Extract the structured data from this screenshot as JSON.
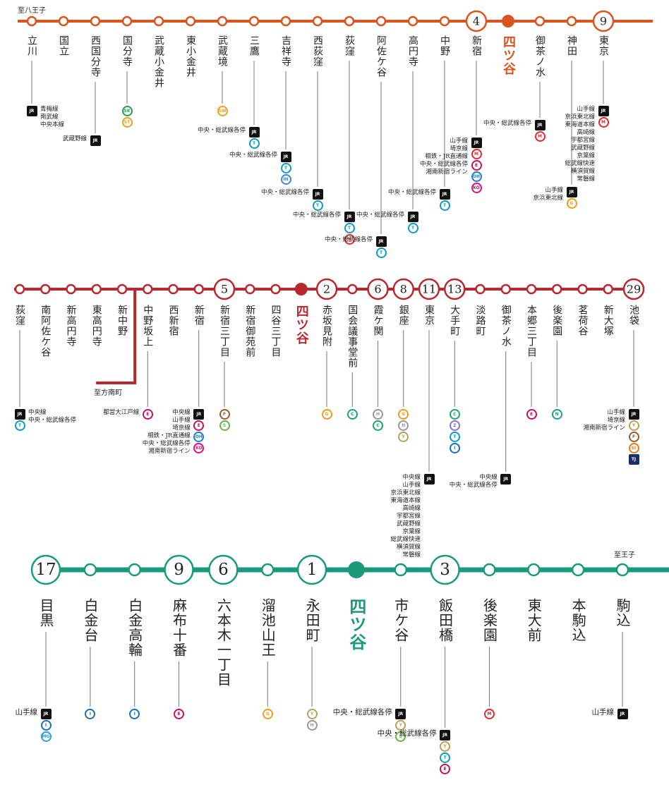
{
  "badge_colors": {
    "JR": "#111111",
    "T": "#0a9bc4",
    "M": "#e5262f",
    "E": "#c4105a",
    "OH": "#1a7fcc",
    "KO": "#d4127a",
    "G": "#f39a1a",
    "C": "#1aa66e",
    "H": "#9a9a92",
    "Y": "#b8a05a",
    "Z": "#8a70c8",
    "I": "#1a6fb8",
    "N": "#16a090",
    "F": "#9a5a2a",
    "S": "#6ab04a",
    "SI": "#e07a1a",
    "TJ": "#1a2f6a",
    "IN": "#3a8ad0",
    "MG": "#2aa0d8",
    "SK": "#2a9a4a",
    "ST": "#e8a020",
    "SW": "#e8a020"
  },
  "lines": [
    {
      "direction": "至八王子",
      "color": "#d9541e",
      "stations": [
        {
          "name": "立川",
          "transfers": {
            "badges": [
              "JR"
            ],
            "text": [
              "青梅線",
              "南武線",
              "中央本線"
            ]
          }
        },
        {
          "name": "国立"
        },
        {
          "name": "西国分寺",
          "transfers": {
            "badges": [
              "JR"
            ],
            "text": [
              "武蔵野線"
            ]
          }
        },
        {
          "name": "国分寺",
          "transfers": {
            "badges": [
              "SK",
              "ST"
            ]
          }
        },
        {
          "name": "武蔵小金井"
        },
        {
          "name": "東小金井"
        },
        {
          "name": "武蔵境",
          "transfers": {
            "badges": [
              "SW"
            ]
          }
        },
        {
          "name": "三鷹",
          "transfers": {
            "badges": [
              "JR",
              "T"
            ],
            "text": [
              "中央・総武線各停"
            ]
          }
        },
        {
          "name": "吉祥寺",
          "transfers": {
            "badges": [
              "JR",
              "T",
              "IN"
            ],
            "text": [
              "中央・総武線各停"
            ]
          }
        },
        {
          "name": "西荻窪",
          "transfers": {
            "badges": [
              "JR",
              "T"
            ],
            "text": [
              "中央・総武線各停"
            ]
          }
        },
        {
          "name": "荻窪",
          "transfers": {
            "badges": [
              "JR",
              "T",
              "M"
            ],
            "text": [
              "中央・総武線各停"
            ]
          }
        },
        {
          "name": "阿佐ケ谷",
          "transfers": {
            "badges": [
              "JR",
              "T"
            ],
            "text": [
              "中央・総武線各停"
            ]
          }
        },
        {
          "name": "高円寺",
          "transfers": {
            "badges": [
              "JR",
              "T"
            ],
            "text": [
              "中央・総武線各停"
            ]
          }
        },
        {
          "name": "中野",
          "transfers": {
            "badges": [
              "JR",
              "T"
            ],
            "text": [
              "中央・総武線各停"
            ]
          }
        },
        {
          "name": "新宿",
          "minutes": 4,
          "transfers": {
            "badges": [
              "JR",
              "M",
              "E",
              "OH",
              "KO"
            ],
            "text": [
              "山手線",
              "埼京線",
              "相鉄・JR直通線",
              "中央・総武線各停",
              "湘南新宿ライン"
            ]
          }
        },
        {
          "name": "四ツ谷",
          "current": true
        },
        {
          "name": "御茶ノ水",
          "transfers": {
            "badges": [
              "JR",
              "M"
            ],
            "text": [
              "中央・総武線各停"
            ]
          }
        },
        {
          "name": "神田",
          "transfers": {
            "badges": [
              "JR",
              "G"
            ],
            "text": [
              "山手線",
              "京浜東北線"
            ]
          }
        },
        {
          "name": "東京",
          "minutes": 9,
          "transfers": {
            "badges": [
              "JR",
              "M"
            ],
            "text": [
              "山手線",
              "京浜東北線",
              "東海道本線",
              "高崎線",
              "宇都宮線",
              "武蔵野線",
              "京葉線",
              "総武線快速",
              "横須賀線",
              "常磐線"
            ]
          }
        }
      ]
    },
    {
      "branch": "至方南町",
      "color": "#b8282e",
      "stations": [
        {
          "name": "荻窪",
          "transfers": {
            "badges": [
              "JR",
              "T"
            ],
            "text": [
              "中央線",
              "中央・総武線各停"
            ]
          }
        },
        {
          "name": "南阿佐ケ谷"
        },
        {
          "name": "新高円寺"
        },
        {
          "name": "東高円寺"
        },
        {
          "name": "新中野"
        },
        {
          "name": "中野坂上",
          "transfers": {
            "badges": [
              "E"
            ],
            "text": [
              "都営大江戸線"
            ]
          }
        },
        {
          "name": "西新宿"
        },
        {
          "name": "新宿",
          "transfers": {
            "badges": [
              "JR",
              "E",
              "OH",
              "KO"
            ],
            "text": [
              "中央線",
              "山手線",
              "埼京線",
              "相鉄・JR直通線",
              "中央・総武線各停",
              "湘南新宿ライン"
            ]
          }
        },
        {
          "name": "新宿三丁目",
          "minutes": 5,
          "transfers": {
            "badges": [
              "F",
              "S"
            ]
          }
        },
        {
          "name": "新宿御苑前"
        },
        {
          "name": "四谷三丁目"
        },
        {
          "name": "四ツ谷",
          "current": true
        },
        {
          "name": "赤坂見附",
          "minutes": 2,
          "transfers": {
            "badges": [
              "G"
            ]
          }
        },
        {
          "name": "国会議事堂前",
          "transfers": {
            "badges": [
              "C"
            ]
          }
        },
        {
          "name": "霞ケ関",
          "minutes": 6,
          "transfers": {
            "badges": [
              "H",
              "C"
            ]
          }
        },
        {
          "name": "銀座",
          "minutes": 8,
          "transfers": {
            "badges": [
              "G",
              "H",
              "Y"
            ]
          }
        },
        {
          "name": "東京",
          "minutes": 11,
          "transfers": {
            "badges": [
              "JR"
            ],
            "text": [
              "中央線",
              "山手線",
              "京浜東北線",
              "東海道本線",
              "高崎線",
              "宇都宮線",
              "武蔵野線",
              "京葉線",
              "総武線快速",
              "横須賀線",
              "常磐線"
            ]
          }
        },
        {
          "name": "大手町",
          "minutes": 13,
          "transfers": {
            "badges": [
              "C",
              "Z",
              "T",
              "I"
            ]
          }
        },
        {
          "name": "淡路町"
        },
        {
          "name": "御茶ノ水",
          "transfers": {
            "badges": [
              "JR"
            ],
            "text": [
              "中央線",
              "中央・総武線各停"
            ]
          }
        },
        {
          "name": "本郷三丁目",
          "transfers": {
            "badges": [
              "E"
            ]
          }
        },
        {
          "name": "後楽園",
          "transfers": {
            "badges": [
              "N"
            ]
          }
        },
        {
          "name": "茗荷谷"
        },
        {
          "name": "新大塚"
        },
        {
          "name": "池袋",
          "minutes": 29,
          "transfers": {
            "badges": [
              "JR",
              "Y",
              "F",
              "SI",
              "TJ"
            ],
            "text": [
              "山手線",
              "埼京線",
              "湘南新宿ライン"
            ]
          }
        }
      ]
    },
    {
      "direction": "至王子",
      "color": "#1a9a7a",
      "stations": [
        {
          "name": "目黒",
          "minutes": 17,
          "transfers": {
            "badges": [
              "JR",
              "I",
              "MG"
            ],
            "text": [
              "山手線"
            ]
          }
        },
        {
          "name": "白金台",
          "transfers": {
            "badges": [
              "I"
            ]
          }
        },
        {
          "name": "白金高輪",
          "transfers": {
            "badges": [
              "I"
            ]
          }
        },
        {
          "name": "麻布十番",
          "minutes": 9,
          "transfers": {
            "badges": [
              "E"
            ]
          }
        },
        {
          "name": "六本木一丁目",
          "minutes": 6
        },
        {
          "name": "溜池山王",
          "transfers": {
            "badges": [
              "G"
            ]
          }
        },
        {
          "name": "永田町",
          "minutes": 1,
          "transfers": {
            "badges": [
              "Y",
              "H"
            ]
          }
        },
        {
          "name": "四ツ谷",
          "current": true
        },
        {
          "name": "市ケ谷",
          "transfers": {
            "badges": [
              "JR",
              "Y",
              "S"
            ],
            "text": [
              "中央・総武線各停"
            ]
          }
        },
        {
          "name": "飯田橋",
          "minutes": 3,
          "transfers": {
            "badges": [
              "JR",
              "Y",
              "T",
              "E"
            ],
            "text": [
              "中央・総武線各停"
            ]
          }
        },
        {
          "name": "後楽園",
          "transfers": {
            "badges": [
              "M"
            ]
          }
        },
        {
          "name": "東大前"
        },
        {
          "name": "本駒込"
        },
        {
          "name": "駒込",
          "transfers": {
            "badges": [
              "JR"
            ],
            "text": [
              "山手線"
            ]
          }
        }
      ]
    }
  ]
}
